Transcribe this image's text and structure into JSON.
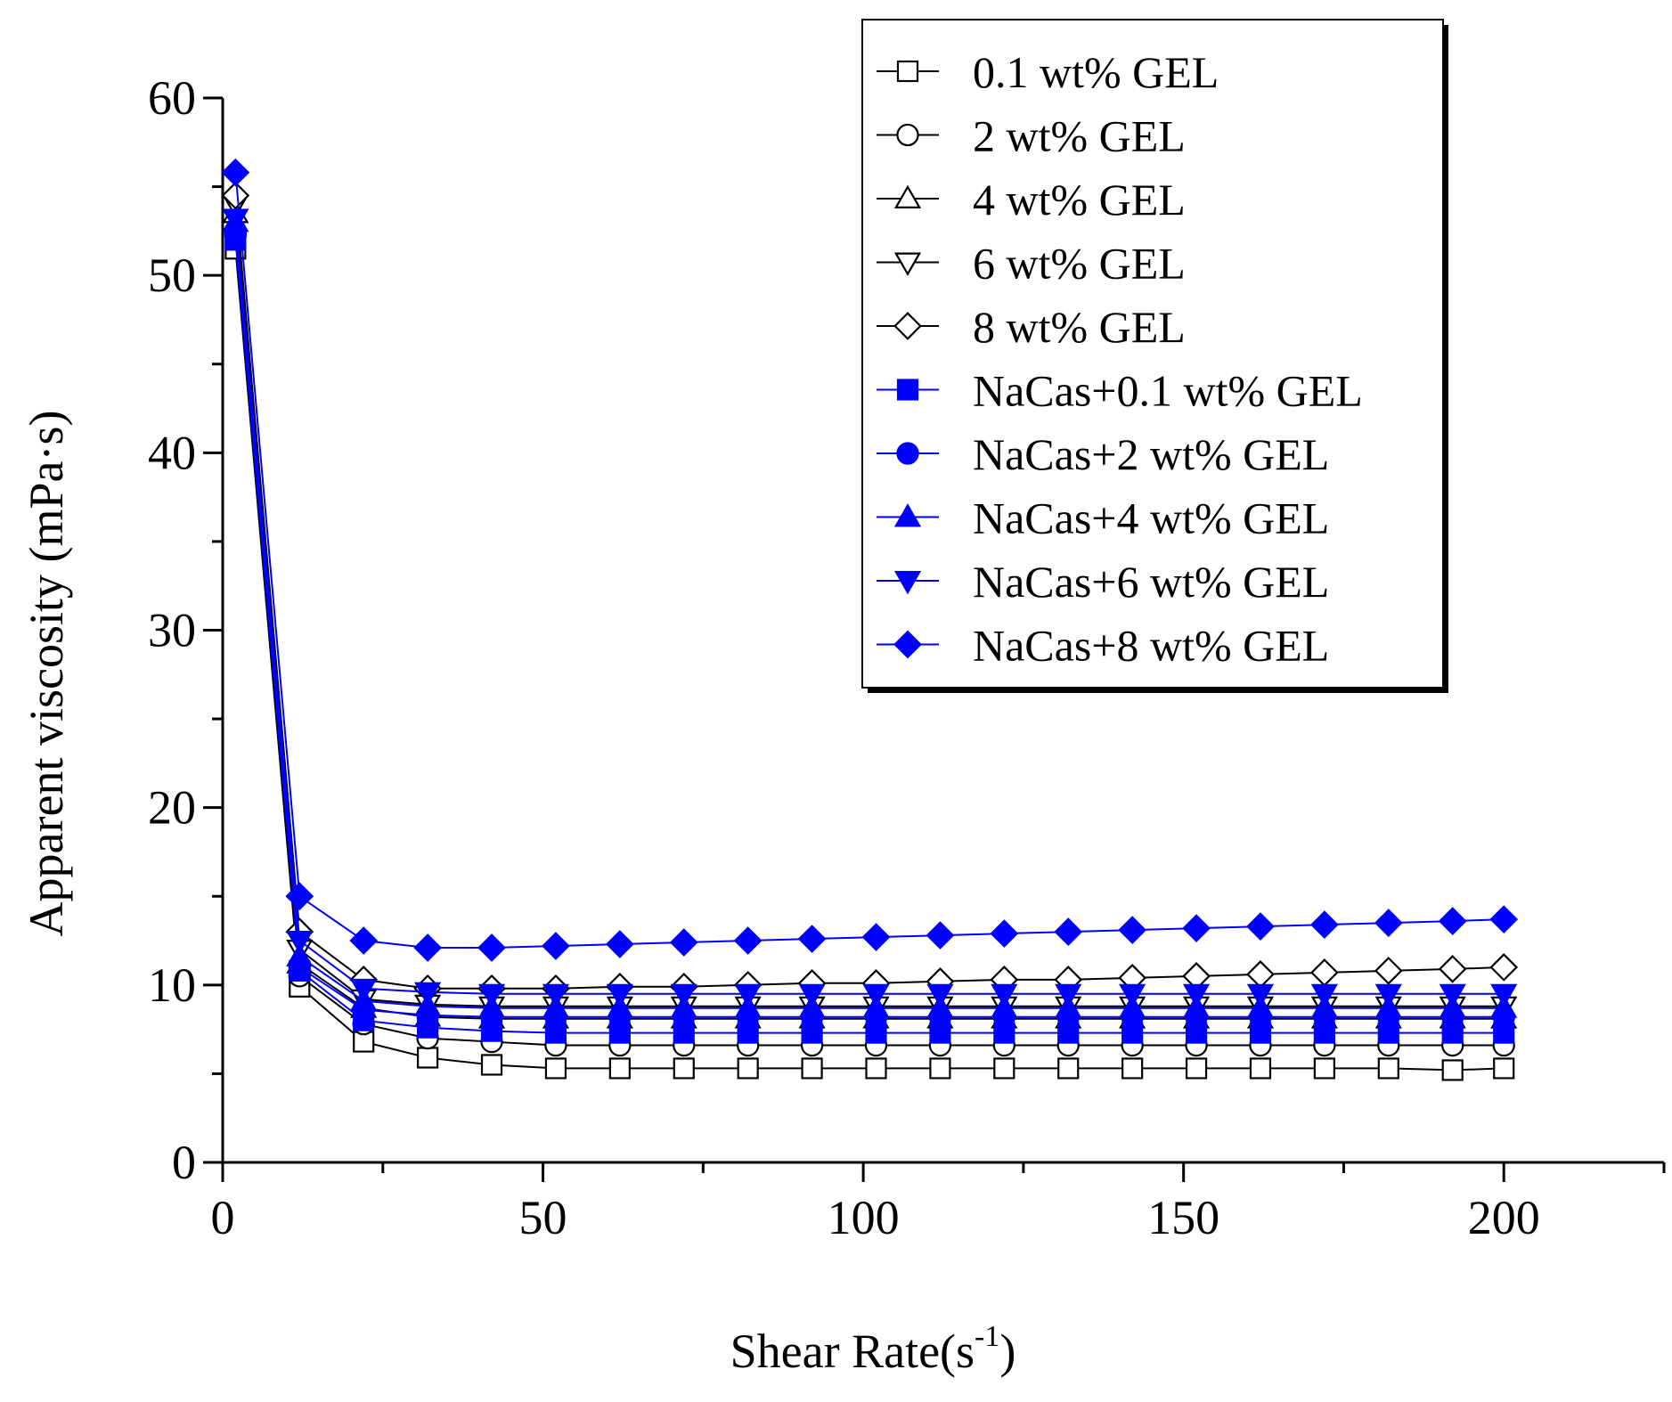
{
  "chart_data": {
    "type": "line",
    "title": "",
    "xlabel": "Shear Rate(s",
    "xlabel_sup": "-1",
    "xlabel_close": ")",
    "ylabel": "Apparent viscosity (mPa·s)",
    "xlim": [
      0,
      225
    ],
    "ylim": [
      0,
      60
    ],
    "xticks": [
      "0",
      "50",
      "100",
      "150",
      "200"
    ],
    "yticks": [
      "0",
      "10",
      "20",
      "30",
      "40",
      "50",
      "60"
    ],
    "grid": false,
    "legend_position": "top-right",
    "x": [
      2,
      12,
      22,
      32,
      42,
      52,
      62,
      72,
      82,
      92,
      102,
      112,
      122,
      132,
      142,
      152,
      162,
      172,
      182,
      192,
      200
    ],
    "series": [
      {
        "name": "0.1 wt% GEL",
        "color": "#000000",
        "marker": "square",
        "filled": false,
        "values": [
          51.5,
          9.9,
          6.8,
          5.9,
          5.5,
          5.3,
          5.3,
          5.3,
          5.3,
          5.3,
          5.3,
          5.3,
          5.3,
          5.3,
          5.3,
          5.3,
          5.3,
          5.3,
          5.3,
          5.2,
          5.3
        ]
      },
      {
        "name": "2 wt% GEL",
        "color": "#000000",
        "marker": "circle",
        "filled": false,
        "values": [
          52.5,
          10.5,
          7.8,
          7.0,
          6.8,
          6.6,
          6.6,
          6.6,
          6.6,
          6.6,
          6.6,
          6.6,
          6.6,
          6.6,
          6.6,
          6.6,
          6.6,
          6.6,
          6.6,
          6.6,
          6.6
        ]
      },
      {
        "name": "4 wt% GEL",
        "color": "#000000",
        "marker": "triangle-up",
        "filled": false,
        "values": [
          53.5,
          11.2,
          8.7,
          8.2,
          8.1,
          8.1,
          8.1,
          8.1,
          8.1,
          8.1,
          8.1,
          8.1,
          8.1,
          8.1,
          8.1,
          8.1,
          8.1,
          8.1,
          8.1,
          8.1,
          8.1
        ]
      },
      {
        "name": "6 wt% GEL",
        "color": "#000000",
        "marker": "triangle-down",
        "filled": false,
        "values": [
          54.0,
          12.0,
          9.2,
          8.9,
          8.8,
          8.8,
          8.8,
          8.8,
          8.8,
          8.8,
          8.8,
          8.8,
          8.8,
          8.8,
          8.8,
          8.8,
          8.8,
          8.8,
          8.8,
          8.8,
          8.8
        ]
      },
      {
        "name": "8 wt% GEL",
        "color": "#000000",
        "marker": "diamond",
        "filled": false,
        "values": [
          54.5,
          13.0,
          10.3,
          9.8,
          9.8,
          9.8,
          9.9,
          9.9,
          10.0,
          10.1,
          10.1,
          10.2,
          10.3,
          10.3,
          10.4,
          10.5,
          10.6,
          10.7,
          10.8,
          10.9,
          11.0
        ]
      },
      {
        "name": "NaCas+0.1 wt% GEL",
        "color": "#0000ff",
        "marker": "square",
        "filled": true,
        "values": [
          52.0,
          10.8,
          8.0,
          7.6,
          7.4,
          7.3,
          7.3,
          7.3,
          7.3,
          7.3,
          7.3,
          7.3,
          7.3,
          7.3,
          7.3,
          7.3,
          7.3,
          7.3,
          7.3,
          7.3,
          7.3
        ]
      },
      {
        "name": "NaCas+2 wt% GEL",
        "color": "#0000ff",
        "marker": "circle",
        "filled": true,
        "values": [
          52.3,
          11.0,
          8.6,
          8.3,
          8.2,
          8.2,
          8.2,
          8.2,
          8.2,
          8.2,
          8.2,
          8.2,
          8.2,
          8.2,
          8.2,
          8.2,
          8.2,
          8.2,
          8.2,
          8.2,
          8.2
        ]
      },
      {
        "name": "NaCas+4 wt% GEL",
        "color": "#0000ff",
        "marker": "triangle-up",
        "filled": true,
        "values": [
          53.0,
          11.6,
          9.1,
          8.8,
          8.7,
          8.7,
          8.7,
          8.7,
          8.7,
          8.7,
          8.7,
          8.7,
          8.7,
          8.7,
          8.7,
          8.7,
          8.7,
          8.7,
          8.7,
          8.7,
          8.7
        ]
      },
      {
        "name": "NaCas+6 wt% GEL",
        "color": "#0000ff",
        "marker": "triangle-down",
        "filled": true,
        "values": [
          53.2,
          12.5,
          9.8,
          9.6,
          9.5,
          9.5,
          9.5,
          9.5,
          9.5,
          9.5,
          9.5,
          9.5,
          9.5,
          9.5,
          9.5,
          9.5,
          9.5,
          9.5,
          9.5,
          9.5,
          9.5
        ]
      },
      {
        "name": "NaCas+8 wt% GEL",
        "color": "#0000ff",
        "marker": "diamond",
        "filled": true,
        "values": [
          55.8,
          15.0,
          12.5,
          12.1,
          12.1,
          12.2,
          12.3,
          12.4,
          12.5,
          12.6,
          12.7,
          12.8,
          12.9,
          13.0,
          13.1,
          13.2,
          13.3,
          13.4,
          13.5,
          13.6,
          13.7
        ]
      }
    ]
  }
}
